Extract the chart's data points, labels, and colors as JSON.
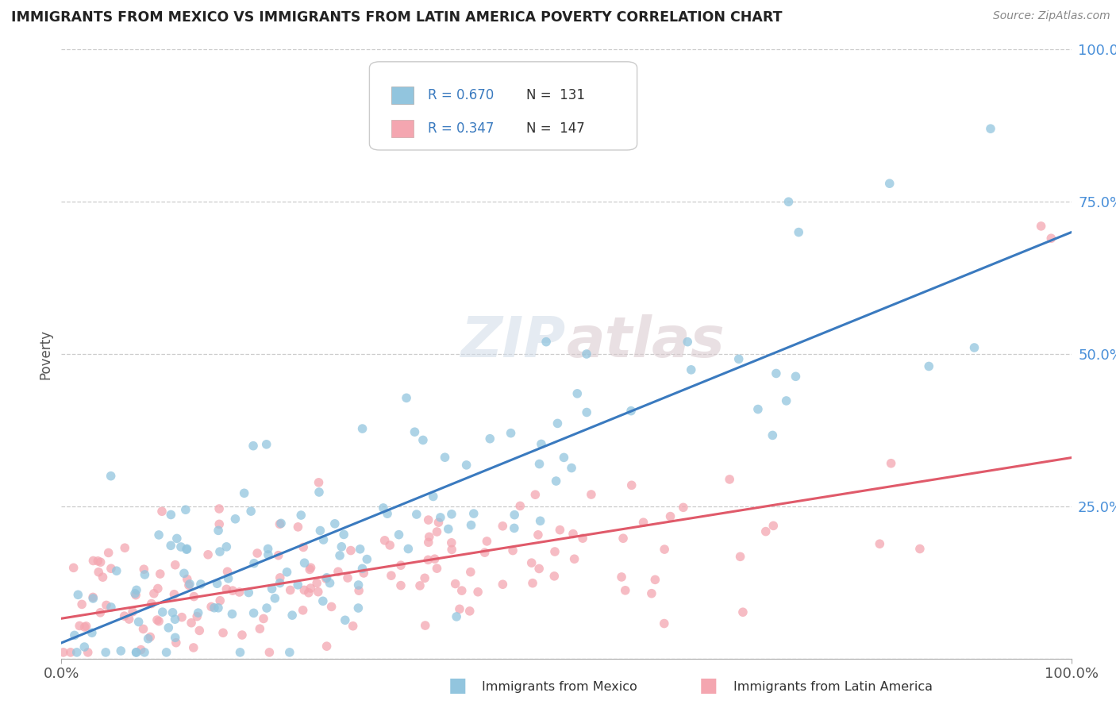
{
  "title": "IMMIGRANTS FROM MEXICO VS IMMIGRANTS FROM LATIN AMERICA POVERTY CORRELATION CHART",
  "source": "Source: ZipAtlas.com",
  "ylabel": "Poverty",
  "color_mexico": "#92c5de",
  "color_latam": "#f4a6b0",
  "color_mexico_line": "#3a7abf",
  "color_latam_line": "#e05a6a",
  "watermark_text": "ZIPatlas",
  "background_color": "#ffffff",
  "grid_color": "#cccccc",
  "legend_R1": "R = 0.670",
  "legend_N1": "N = 131",
  "legend_R2": "R = 0.347",
  "legend_N2": "N = 147",
  "legend_text_color": "#3a7abf",
  "bottom_label1": "Immigrants from Mexico",
  "bottom_label2": "Immigrants from Latin America"
}
